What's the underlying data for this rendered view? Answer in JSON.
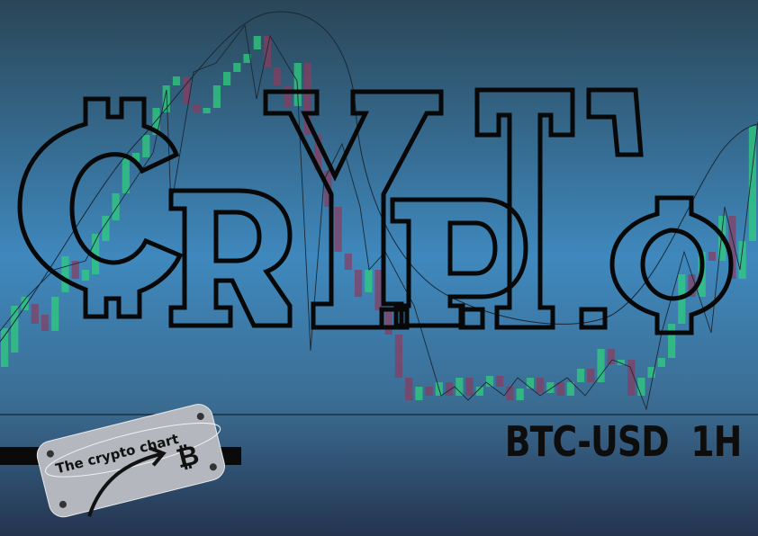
{
  "poster": {
    "wordmark": "CRYPTO",
    "pair": "BTC-USD",
    "interval": "1H",
    "badge_text": "The crypto chart"
  },
  "colors": {
    "bg_top": "#2a4657",
    "bg_mid": "#3f88bd",
    "bg_bottom": "#24344f",
    "bull": "#2fce7e",
    "bear": "#8a3a5e",
    "ink": "#0d0d0d",
    "tag": "#b4b7bd"
  },
  "icons": [
    "bitcoin-icon",
    "arrow-icon",
    "rivet-icon"
  ],
  "candles": [
    {
      "o": 408,
      "c": 365
    },
    {
      "o": 392,
      "c": 340
    },
    {
      "o": 345,
      "c": 330
    },
    {
      "o": 338,
      "c": 360
    },
    {
      "o": 350,
      "c": 368
    },
    {
      "o": 368,
      "c": 330
    },
    {
      "o": 325,
      "c": 285
    },
    {
      "o": 290,
      "c": 310
    },
    {
      "o": 312,
      "c": 300
    },
    {
      "o": 305,
      "c": 260
    },
    {
      "o": 268,
      "c": 240
    },
    {
      "o": 245,
      "c": 215
    },
    {
      "o": 215,
      "c": 175
    },
    {
      "o": 180,
      "c": 170
    },
    {
      "o": 175,
      "c": 150
    },
    {
      "o": 150,
      "c": 120
    },
    {
      "o": 125,
      "c": 95
    },
    {
      "o": 95,
      "c": 85
    },
    {
      "o": 85,
      "c": 115
    },
    {
      "o": 115,
      "c": 125
    },
    {
      "o": 125,
      "c": 120
    },
    {
      "o": 120,
      "c": 95
    },
    {
      "o": 95,
      "c": 80
    },
    {
      "o": 80,
      "c": 70
    },
    {
      "o": 70,
      "c": 60
    },
    {
      "o": 55,
      "c": 40
    },
    {
      "o": 40,
      "c": 75
    },
    {
      "o": 75,
      "c": 95
    },
    {
      "o": 95,
      "c": 120
    },
    {
      "o": 118,
      "c": 70
    },
    {
      "o": 70,
      "c": 150
    },
    {
      "o": 150,
      "c": 190
    },
    {
      "o": 190,
      "c": 230
    },
    {
      "o": 230,
      "c": 280
    },
    {
      "o": 282,
      "c": 300
    },
    {
      "o": 300,
      "c": 330
    },
    {
      "o": 325,
      "c": 300
    },
    {
      "o": 300,
      "c": 345
    },
    {
      "o": 345,
      "c": 372
    },
    {
      "o": 372,
      "c": 420
    },
    {
      "o": 420,
      "c": 445
    },
    {
      "o": 445,
      "c": 430
    },
    {
      "o": 430,
      "c": 440
    },
    {
      "o": 440,
      "c": 425
    },
    {
      "o": 425,
      "c": 440
    },
    {
      "o": 440,
      "c": 420
    },
    {
      "o": 420,
      "c": 440
    },
    {
      "o": 440,
      "c": 430
    },
    {
      "o": 430,
      "c": 418
    },
    {
      "o": 418,
      "c": 430
    },
    {
      "o": 430,
      "c": 445
    },
    {
      "o": 445,
      "c": 432
    },
    {
      "o": 432,
      "c": 420
    },
    {
      "o": 420,
      "c": 437
    },
    {
      "o": 437,
      "c": 425
    },
    {
      "o": 425,
      "c": 440
    },
    {
      "o": 440,
      "c": 425
    },
    {
      "o": 425,
      "c": 410
    },
    {
      "o": 410,
      "c": 425
    },
    {
      "o": 425,
      "c": 388
    },
    {
      "o": 388,
      "c": 405
    },
    {
      "o": 405,
      "c": 400
    },
    {
      "o": 400,
      "c": 440
    },
    {
      "o": 440,
      "c": 420
    },
    {
      "o": 420,
      "c": 408
    },
    {
      "o": 408,
      "c": 398
    },
    {
      "o": 398,
      "c": 360
    },
    {
      "o": 360,
      "c": 305
    },
    {
      "o": 305,
      "c": 330
    },
    {
      "o": 330,
      "c": 280
    },
    {
      "o": 280,
      "c": 290
    },
    {
      "o": 290,
      "c": 240
    },
    {
      "o": 240,
      "c": 310
    },
    {
      "o": 310,
      "c": 268
    },
    {
      "o": 268,
      "c": 140
    }
  ]
}
